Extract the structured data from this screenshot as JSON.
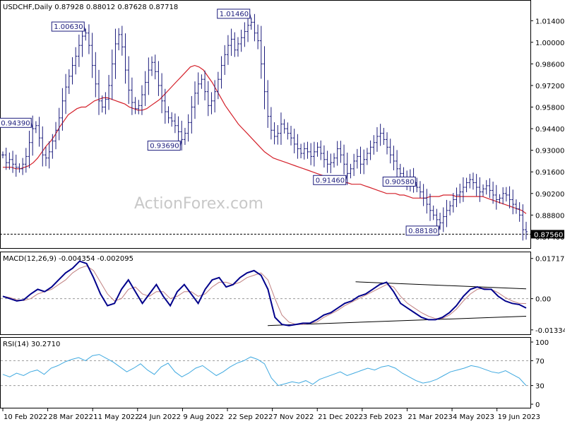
{
  "watermark": "ActionForex.com",
  "chart_data": [
    {
      "type": "candlestick",
      "title": "USDCHF,Daily 0.87928 0.88012 0.87628 0.87718",
      "ylim": [
        0.868,
        1.021
      ],
      "y_ticks": [
        "1.01400",
        "1.00000",
        "0.98600",
        "0.97200",
        "0.95800",
        "0.94400",
        "0.93000",
        "0.91600",
        "0.90200",
        "0.88800",
        "0.87400"
      ],
      "current_price_label": "0.87560",
      "x_ticks": [
        "10 Feb 2022",
        "28 Mar 2022",
        "11 May 2022",
        "24 Jun 2022",
        "9 Aug 2022",
        "22 Sep 2022",
        "7 Nov 2022",
        "21 Dec 2022",
        "3 Feb 2023",
        "21 Mar 2023",
        "4 May 2023",
        "19 Jun 2023"
      ],
      "annotations": [
        {
          "text": "1.00630",
          "value": 1.0063
        },
        {
          "text": "1.01460",
          "value": 1.0146
        },
        {
          "text": "0.93690",
          "value": 0.9369
        },
        {
          "text": "0.94390",
          "value": 0.9439
        },
        {
          "text": "0.90580",
          "value": 0.9058
        },
        {
          "text": "0.91460",
          "value": 0.9146
        },
        {
          "text": "0.88180",
          "value": 0.8818
        }
      ],
      "series": [
        {
          "name": "close",
          "color": "#1c1c7c",
          "values": [
            0.927,
            0.922,
            0.924,
            0.921,
            0.919,
            0.918,
            0.921,
            0.926,
            0.935,
            0.944,
            0.946,
            0.938,
            0.927,
            0.925,
            0.929,
            0.936,
            0.943,
            0.951,
            0.962,
            0.971,
            0.978,
            0.985,
            0.991,
            0.998,
            1.004,
            1.006,
            0.998,
            0.985,
            0.973,
            0.962,
            0.958,
            0.963,
            0.972,
            0.986,
            0.999,
            1.005,
            0.997,
            0.982,
            0.969,
            0.961,
            0.957,
            0.959,
            0.966,
            0.974,
            0.982,
            0.987,
            0.981,
            0.972,
            0.962,
            0.955,
            0.951,
            0.949,
            0.946,
            0.942,
            0.937,
            0.941,
            0.948,
            0.958,
            0.967,
            0.973,
            0.976,
            0.968,
            0.959,
            0.962,
            0.968,
            0.976,
            0.985,
            0.992,
            0.998,
            1.002,
            0.995,
            0.999,
            1.003,
            1.007,
            1.011,
            1.013,
            1.006,
            1.001,
            0.986,
            0.968,
            0.952,
            0.943,
            0.939,
            0.941,
            0.947,
            0.944,
            0.941,
            0.938,
            0.934,
            0.931,
            0.928,
            0.931,
            0.929,
            0.926,
            0.929,
            0.932,
            0.928,
            0.924,
            0.921,
            0.922,
            0.925,
            0.931,
            0.927,
            0.921,
            0.915,
            0.918,
            0.923,
            0.926,
            0.921,
            0.924,
            0.928,
            0.932,
            0.935,
            0.939,
            0.941,
            0.937,
            0.932,
            0.927,
            0.923,
            0.918,
            0.915,
            0.912,
            0.909,
            0.912,
            0.909,
            0.906,
            0.903,
            0.899,
            0.895,
            0.891,
            0.888,
            0.885,
            0.883,
            0.887,
            0.891,
            0.894,
            0.898,
            0.901,
            0.903,
            0.906,
            0.909,
            0.911,
            0.909,
            0.906,
            0.903,
            0.905,
            0.907,
            0.904,
            0.901,
            0.898,
            0.899,
            0.902,
            0.901,
            0.898,
            0.895,
            0.892,
            0.888,
            0.8785,
            0.8772
          ]
        },
        {
          "name": "moving_average",
          "color": "#d4202a",
          "values": [
            0.919,
            0.919,
            0.919,
            0.918,
            0.918,
            0.919,
            0.92,
            0.922,
            0.925,
            0.929,
            0.933,
            0.936,
            0.94,
            0.945,
            0.949,
            0.953,
            0.955,
            0.957,
            0.958,
            0.958,
            0.96,
            0.962,
            0.963,
            0.964,
            0.964,
            0.963,
            0.962,
            0.961,
            0.96,
            0.958,
            0.957,
            0.956,
            0.956,
            0.957,
            0.959,
            0.961,
            0.963,
            0.966,
            0.969,
            0.972,
            0.975,
            0.978,
            0.981,
            0.984,
            0.985,
            0.984,
            0.982,
            0.978,
            0.974,
            0.969,
            0.964,
            0.959,
            0.955,
            0.951,
            0.947,
            0.944,
            0.941,
            0.938,
            0.935,
            0.932,
            0.929,
            0.927,
            0.925,
            0.924,
            0.923,
            0.922,
            0.921,
            0.92,
            0.919,
            0.918,
            0.917,
            0.916,
            0.915,
            0.914,
            0.913,
            0.912,
            0.911,
            0.91,
            0.909,
            0.909,
            0.908,
            0.908,
            0.908,
            0.907,
            0.906,
            0.905,
            0.904,
            0.903,
            0.902,
            0.902,
            0.902,
            0.901,
            0.901,
            0.9,
            0.899,
            0.899,
            0.899,
            0.899,
            0.9,
            0.9,
            0.9,
            0.901,
            0.901,
            0.901,
            0.9,
            0.9,
            0.9,
            0.9,
            0.9,
            0.9,
            0.9,
            0.899,
            0.898,
            0.897,
            0.896,
            0.895,
            0.894,
            0.893,
            0.892,
            0.891,
            0.889
          ]
        }
      ]
    },
    {
      "type": "line",
      "title": "MACD(12,26,9) -0.004354 -0.002095",
      "ylim": [
        -0.0143,
        0.0183
      ],
      "y_ticks": [
        "0.017176",
        "0.00",
        "-0.01334"
      ],
      "series": [
        {
          "name": "MACD",
          "color": "#00008b",
          "values": [
            0.001,
            0.0,
            -0.001,
            -0.0005,
            0.002,
            0.004,
            0.003,
            0.005,
            0.008,
            0.011,
            0.013,
            0.016,
            0.015,
            0.009,
            0.002,
            -0.003,
            -0.002,
            0.004,
            0.008,
            0.003,
            -0.002,
            0.002,
            0.006,
            0.001,
            -0.003,
            0.003,
            0.006,
            0.002,
            -0.002,
            0.004,
            0.008,
            0.009,
            0.005,
            0.006,
            0.009,
            0.011,
            0.012,
            0.01,
            0.004,
            -0.008,
            -0.011,
            -0.0115,
            -0.011,
            -0.0105,
            -0.0105,
            -0.009,
            -0.007,
            -0.006,
            -0.004,
            -0.002,
            -0.001,
            0.001,
            0.002,
            0.004,
            0.006,
            0.007,
            0.003,
            -0.002,
            -0.004,
            -0.006,
            -0.008,
            -0.009,
            -0.009,
            -0.008,
            -0.006,
            -0.003,
            0.001,
            0.004,
            0.005,
            0.004,
            0.004,
            0.001,
            -0.001,
            -0.002,
            -0.0025,
            -0.004
          ]
        },
        {
          "name": "Signal",
          "color": "#c08080",
          "values": [
            0.001,
            0.0005,
            -0.0005,
            -0.0008,
            0.0,
            0.002,
            0.003,
            0.004,
            0.006,
            0.008,
            0.011,
            0.013,
            0.014,
            0.012,
            0.007,
            0.002,
            -0.001,
            0.0,
            0.004,
            0.005,
            0.002,
            0.001,
            0.003,
            0.003,
            0.0,
            0.001,
            0.003,
            0.003,
            0.001,
            0.002,
            0.005,
            0.007,
            0.007,
            0.006,
            0.007,
            0.009,
            0.01,
            0.011,
            0.008,
            0.0,
            -0.007,
            -0.01,
            -0.011,
            -0.011,
            -0.0105,
            -0.01,
            -0.008,
            -0.0065,
            -0.005,
            -0.003,
            -0.0015,
            0.0,
            0.0015,
            0.003,
            0.0045,
            0.006,
            0.005,
            0.001,
            -0.002,
            -0.004,
            -0.006,
            -0.0075,
            -0.0085,
            -0.0085,
            -0.007,
            -0.0045,
            -0.001,
            0.002,
            0.004,
            0.0045,
            0.004,
            0.0025,
            0.0005,
            -0.001,
            -0.002,
            -0.0021
          ]
        }
      ],
      "trendlines": [
        {
          "from": [
            0.6741,
            0.0072
          ],
          "to": [
            1.0,
            0.0042
          ]
        },
        {
          "from": [
            0.5062,
            -0.0115
          ],
          "to": [
            1.0,
            -0.0075
          ]
        }
      ]
    },
    {
      "type": "line",
      "title": "RSI(14) 30.2710",
      "ylim": [
        0,
        100
      ],
      "y_ticks": [
        "100",
        "70",
        "30",
        "0"
      ],
      "reference_lines": [
        70,
        30
      ],
      "series": [
        {
          "name": "RSI",
          "color": "#3fa9e0",
          "values": [
            48,
            44,
            50,
            46,
            52,
            55,
            48,
            58,
            62,
            68,
            72,
            75,
            70,
            78,
            80,
            74,
            68,
            60,
            52,
            58,
            65,
            55,
            48,
            60,
            66,
            52,
            44,
            50,
            58,
            62,
            54,
            46,
            52,
            60,
            66,
            70,
            76,
            72,
            65,
            42,
            30,
            33,
            36,
            34,
            38,
            32,
            40,
            44,
            48,
            52,
            46,
            50,
            54,
            58,
            55,
            60,
            62,
            58,
            50,
            44,
            38,
            34,
            36,
            40,
            46,
            52,
            55,
            58,
            62,
            60,
            56,
            52,
            50,
            54,
            48,
            42,
            30
          ]
        }
      ]
    }
  ]
}
